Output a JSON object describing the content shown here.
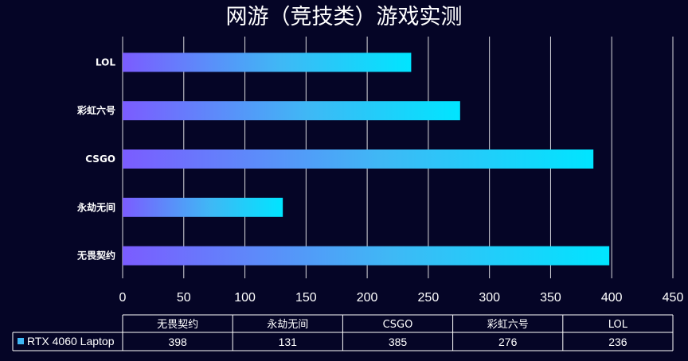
{
  "chart_data": {
    "type": "bar",
    "orientation": "horizontal",
    "title": "网游（竞技类）游戏实测",
    "categories": [
      "LOL",
      "彩虹六号",
      "CSGO",
      "永劫无间",
      "无畏契约"
    ],
    "series": [
      {
        "name": "RTX 4060 Laptop",
        "values": [
          236,
          276,
          385,
          131,
          398
        ]
      }
    ],
    "xlim": [
      0,
      450
    ],
    "xticks": [
      0,
      50,
      100,
      150,
      200,
      250,
      300,
      350,
      400,
      450
    ],
    "grid": true,
    "gradient": [
      "#7b5cff",
      "#00e5ff"
    ],
    "data_table": {
      "columns": [
        "无畏契约",
        "永劫无间",
        "CSGO",
        "彩虹六号",
        "LOL"
      ],
      "row_label": "RTX 4060 Laptop",
      "values": [
        398,
        131,
        385,
        276,
        236
      ],
      "legend_color": "#3fb8f5"
    }
  }
}
